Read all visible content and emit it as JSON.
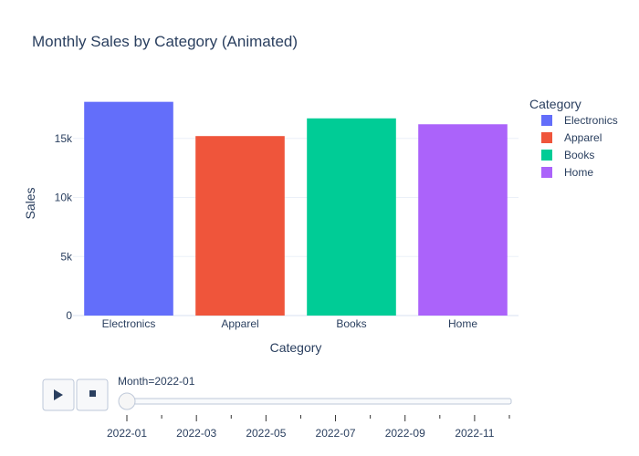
{
  "chart_data": {
    "type": "bar",
    "title": "Monthly Sales by Category (Animated)",
    "xlabel": "Category",
    "ylabel": "Sales",
    "categories": [
      "Electronics",
      "Apparel",
      "Books",
      "Home"
    ],
    "values": [
      18100,
      15200,
      16700,
      16200
    ],
    "colors": [
      "#636efa",
      "#EF553B",
      "#00cc96",
      "#ab63fa"
    ],
    "ylim": [
      0,
      19000
    ],
    "yticks": [
      0,
      5000,
      10000,
      15000
    ],
    "ytick_labels": [
      "0",
      "5k",
      "10k",
      "15k"
    ],
    "grid": true,
    "legend": {
      "title": "Category",
      "placement": "right",
      "entries": [
        "Electronics",
        "Apparel",
        "Books",
        "Home"
      ]
    }
  },
  "animation": {
    "current_label": "Month=2022-01",
    "slider_value": 0,
    "frame_ticks": [
      "2022-01",
      "2022-03",
      "2022-05",
      "2022-07",
      "2022-09",
      "2022-11"
    ],
    "play_icon": "play-icon",
    "stop_icon": "stop-icon"
  }
}
